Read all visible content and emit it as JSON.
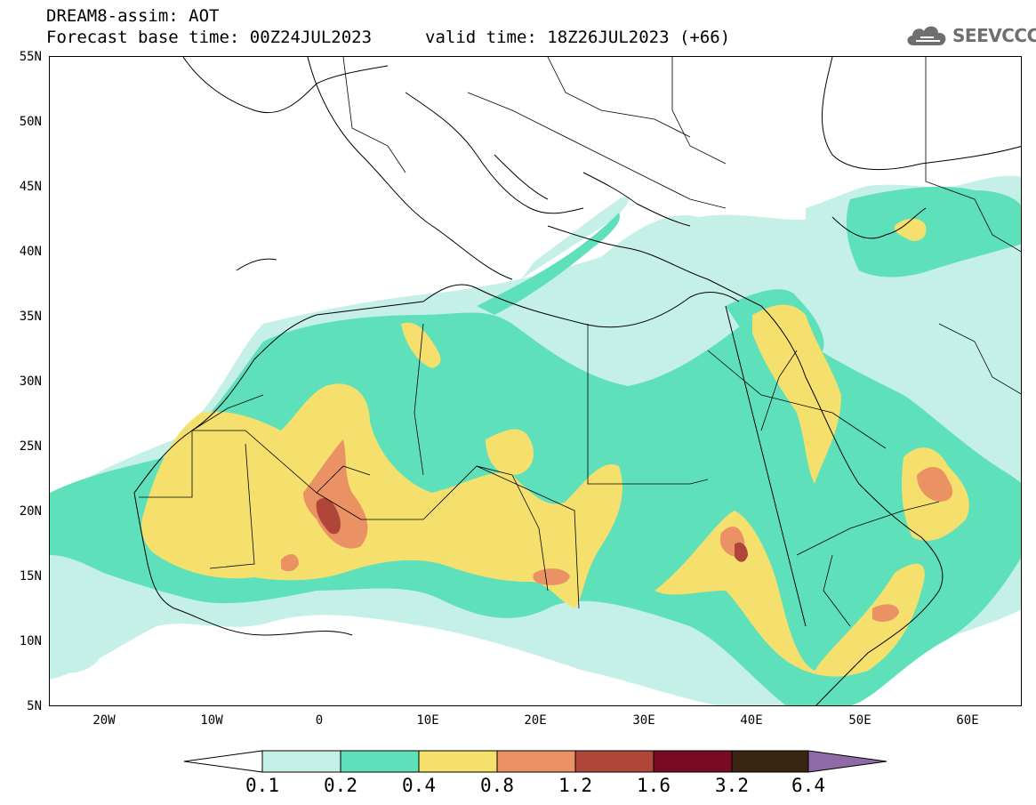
{
  "header": {
    "line1": "DREAM8-assim: AOT",
    "forecast_base": "Forecast base time: 00Z24JUL2023",
    "valid_time": "valid time: 18Z26JUL2023 (+66)"
  },
  "logo": {
    "text": "SEEVCCC",
    "icon": "cloud-icon"
  },
  "map": {
    "projection": "lat-lon",
    "lon_range": [
      -25,
      65
    ],
    "lat_range": [
      5,
      55
    ],
    "lat_labels": [
      "55N",
      "50N",
      "45N",
      "40N",
      "35N",
      "30N",
      "25N",
      "20N",
      "15N",
      "10N",
      "5N"
    ],
    "lon_labels": [
      "20W",
      "10W",
      "0",
      "10E",
      "20E",
      "30E",
      "40E",
      "50E",
      "60E"
    ],
    "variable": "AOT"
  },
  "colorbar": {
    "levels": [
      "0.1",
      "0.2",
      "0.4",
      "0.8",
      "1.2",
      "1.6",
      "3.2",
      "6.4"
    ],
    "colors": [
      "#ffffff",
      "#c4f0e8",
      "#5ee0bb",
      "#f5e06e",
      "#ea9263",
      "#b0463a",
      "#7a0a24",
      "#3a2412",
      "#8e6aa6"
    ]
  }
}
